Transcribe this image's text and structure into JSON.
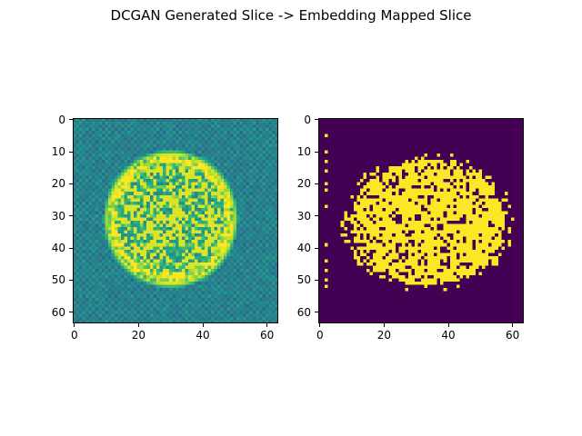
{
  "figure": {
    "title": "DCGAN Generated Slice -> Embedding Mapped Slice"
  },
  "panels": [
    {
      "kind": "continuous",
      "colormap": "viridis",
      "x_ticks": [
        "0",
        "20",
        "40",
        "60"
      ],
      "y_ticks": [
        "0",
        "10",
        "20",
        "30",
        "40",
        "50",
        "60"
      ]
    },
    {
      "kind": "binary",
      "colormap": "viridis",
      "x_ticks": [
        "0",
        "20",
        "40",
        "60"
      ],
      "y_ticks": [
        "0",
        "10",
        "20",
        "30",
        "40",
        "50",
        "60"
      ]
    }
  ],
  "chart_data": {
    "type": "heatmap",
    "image_size": [
      64,
      64
    ],
    "x_range": [
      -0.5,
      63.5
    ],
    "y_range": [
      63.5,
      -0.5
    ],
    "description_note_free": true,
    "panel_1_content": "noisy continuous-valued DCGAN output: textured elliptical brain-like region centered near (30, 31) with radii ~19 x ~20 on a low-valued background",
    "panel_2_content": "binary mask (0 = purple, 1 = yellow): filled elliptical region spanning x≈9–58, y≈12–52 with scattered holes and isolated edge pixels"
  },
  "colors": {
    "viridis_low": "#440154",
    "viridis_high": "#fde725"
  }
}
